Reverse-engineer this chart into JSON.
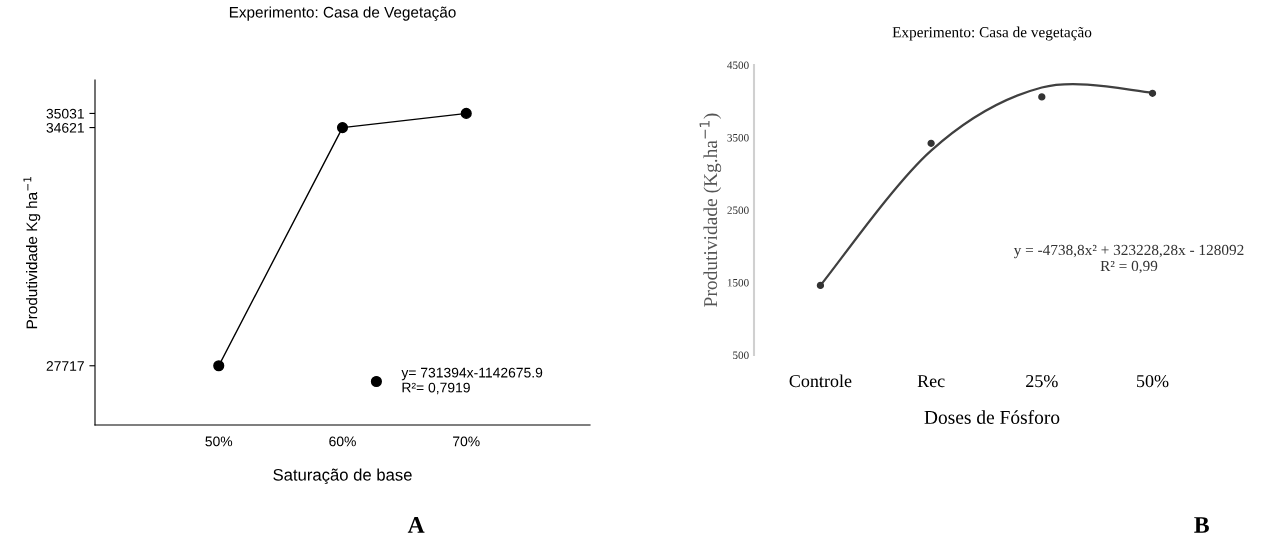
{
  "chart_data": [
    {
      "type": "line",
      "title": "Experimento: Casa de Vegetação",
      "xlabel": "Saturação de base",
      "ylabel": "Produtividade Kg ha$^{−1}$",
      "x": [
        50,
        60,
        70
      ],
      "xlim": [
        40,
        80
      ],
      "xticks": [
        {
          "value": 50,
          "label": "50%"
        },
        {
          "value": 60,
          "label": "60%"
        },
        {
          "value": 70,
          "label": "70%"
        }
      ],
      "ylim": [
        26000,
        36000
      ],
      "yticks": [
        27717,
        34621,
        35031
      ],
      "series": [
        {
          "name": "y= 731394x-1142675.9\nR²= 0,7919",
          "color": "#000000",
          "values": [
            27717,
            34621,
            35031
          ]
        }
      ],
      "marker": "circle",
      "line_style": "solid",
      "legend": "bottom right",
      "annotations": [
        "A"
      ]
    },
    {
      "type": "scatter",
      "title": "Experimento: Casa de vegetação",
      "xlabel": "Doses de Fósforo",
      "ylabel": "Produtividade (Kg.ha$^{−1}$)",
      "categories": [
        "Controle",
        "Rec",
        "25%",
        "50%"
      ],
      "ylim": [
        500,
        4500
      ],
      "yticks": [
        500,
        1500,
        2500,
        3500,
        4500
      ],
      "series": [
        {
          "type": "scatter",
          "color": "#333333",
          "marker": "circle",
          "values": [
            1460,
            3420,
            4060,
            4110
          ]
        },
        {
          "type": "line",
          "color": "#404040",
          "values": [
            1460,
            3320,
            4190,
            4120
          ]
        }
      ],
      "annotations": [
        "y = -4738,8x² + 323228,28x - 128092\nR² = 0,99",
        "B"
      ]
    }
  ]
}
